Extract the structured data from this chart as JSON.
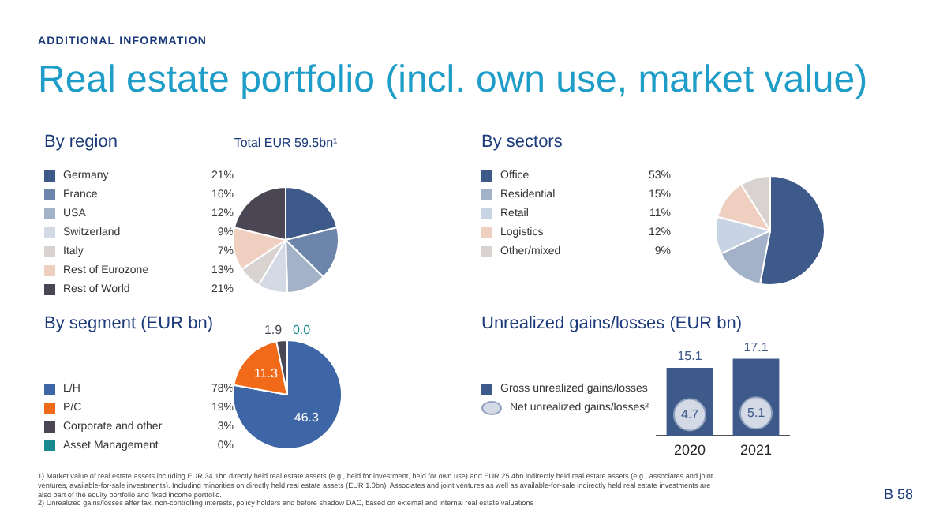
{
  "chart_data": [
    {
      "type": "other",
      "subtitle": "ADDITIONAL INFORMATION",
      "title": "Real estate portfolio (incl. own use, market value)",
      "annotations": [
        "1)  Market value of real estate assets including EUR 34.1bn directly held real estate assets (e.g., held for investment, held for own use) and EUR 25.4bn indirectly held real estate assets (e.g., associates and joint ventures, available-for-sale investments). Including minorities on directly held real estate assets (EUR 1.0bn). Associates and joint ventures as well as available-for-sale indirectly held real estate investments are also part of the equity portfolio and fixed income portfolio.",
        "2)  Unrealized gains/losses after tax, non-controlling interests, policy holders and before shadow DAC, based on external and internal real estate valuations",
        "B 58"
      ]
    },
    {
      "type": "pie",
      "title": "By region",
      "subtitle": "Total EUR 59.5bn¹",
      "legend": "left",
      "categories": [
        "Germany",
        "France",
        "USA",
        "Switzerland",
        "Italy",
        "Rest of Eurozone",
        "Rest of World"
      ],
      "values": [
        21,
        16,
        12,
        9,
        7,
        13,
        21
      ],
      "value_labels": [
        "21%",
        "16%",
        "12%",
        "9%",
        "7%",
        "13%",
        "21%"
      ],
      "colors": [
        "#3d5a8a",
        "#6d84ab",
        "#a3b1c9",
        "#d3dae6",
        "#d8d3d0",
        "#efcfc0",
        "#4a4654"
      ]
    },
    {
      "type": "pie",
      "title": "By sectors",
      "legend": "left",
      "categories": [
        "Office",
        "Residential",
        "Retail",
        "Logistics",
        "Other/mixed"
      ],
      "values": [
        53,
        15,
        11,
        12,
        9
      ],
      "value_labels": [
        "53%",
        "15%",
        "11%",
        "12%",
        "9%"
      ],
      "colors": [
        "#3d5a8a",
        "#a3b1c9",
        "#c8d3e3",
        "#efcfc0",
        "#d8d3d0"
      ]
    },
    {
      "type": "pie",
      "title": "By segment (EUR bn)",
      "legend": "left",
      "data_labels": true,
      "categories": [
        "L/H",
        "P/C",
        "Corporate and other",
        "Asset Management"
      ],
      "values": [
        46.3,
        11.3,
        1.9,
        0.0
      ],
      "value_labels": [
        "46.3",
        "11.3",
        "1.9",
        "0.0"
      ],
      "annotations": [
        "78%",
        "19%",
        "3%",
        "0%"
      ],
      "colors": [
        "#3e65a5",
        "#f06a1a",
        "#4a4654",
        "#1a8a8e"
      ]
    },
    {
      "type": "bar",
      "title": "Unrealized gains/losses (EUR bn)",
      "legend": "left",
      "data_labels": true,
      "categories": [
        "2020",
        "2021"
      ],
      "series": [
        {
          "name": "Gross unrealized gains/losses",
          "color": "#3d5a8a",
          "values": [
            15.1,
            17.1
          ]
        },
        {
          "name": "Net unrealized gains/losses²",
          "type": "scatter",
          "marker": "circle",
          "color": "#d3dae6",
          "values": [
            4.7,
            5.1
          ]
        }
      ]
    }
  ]
}
